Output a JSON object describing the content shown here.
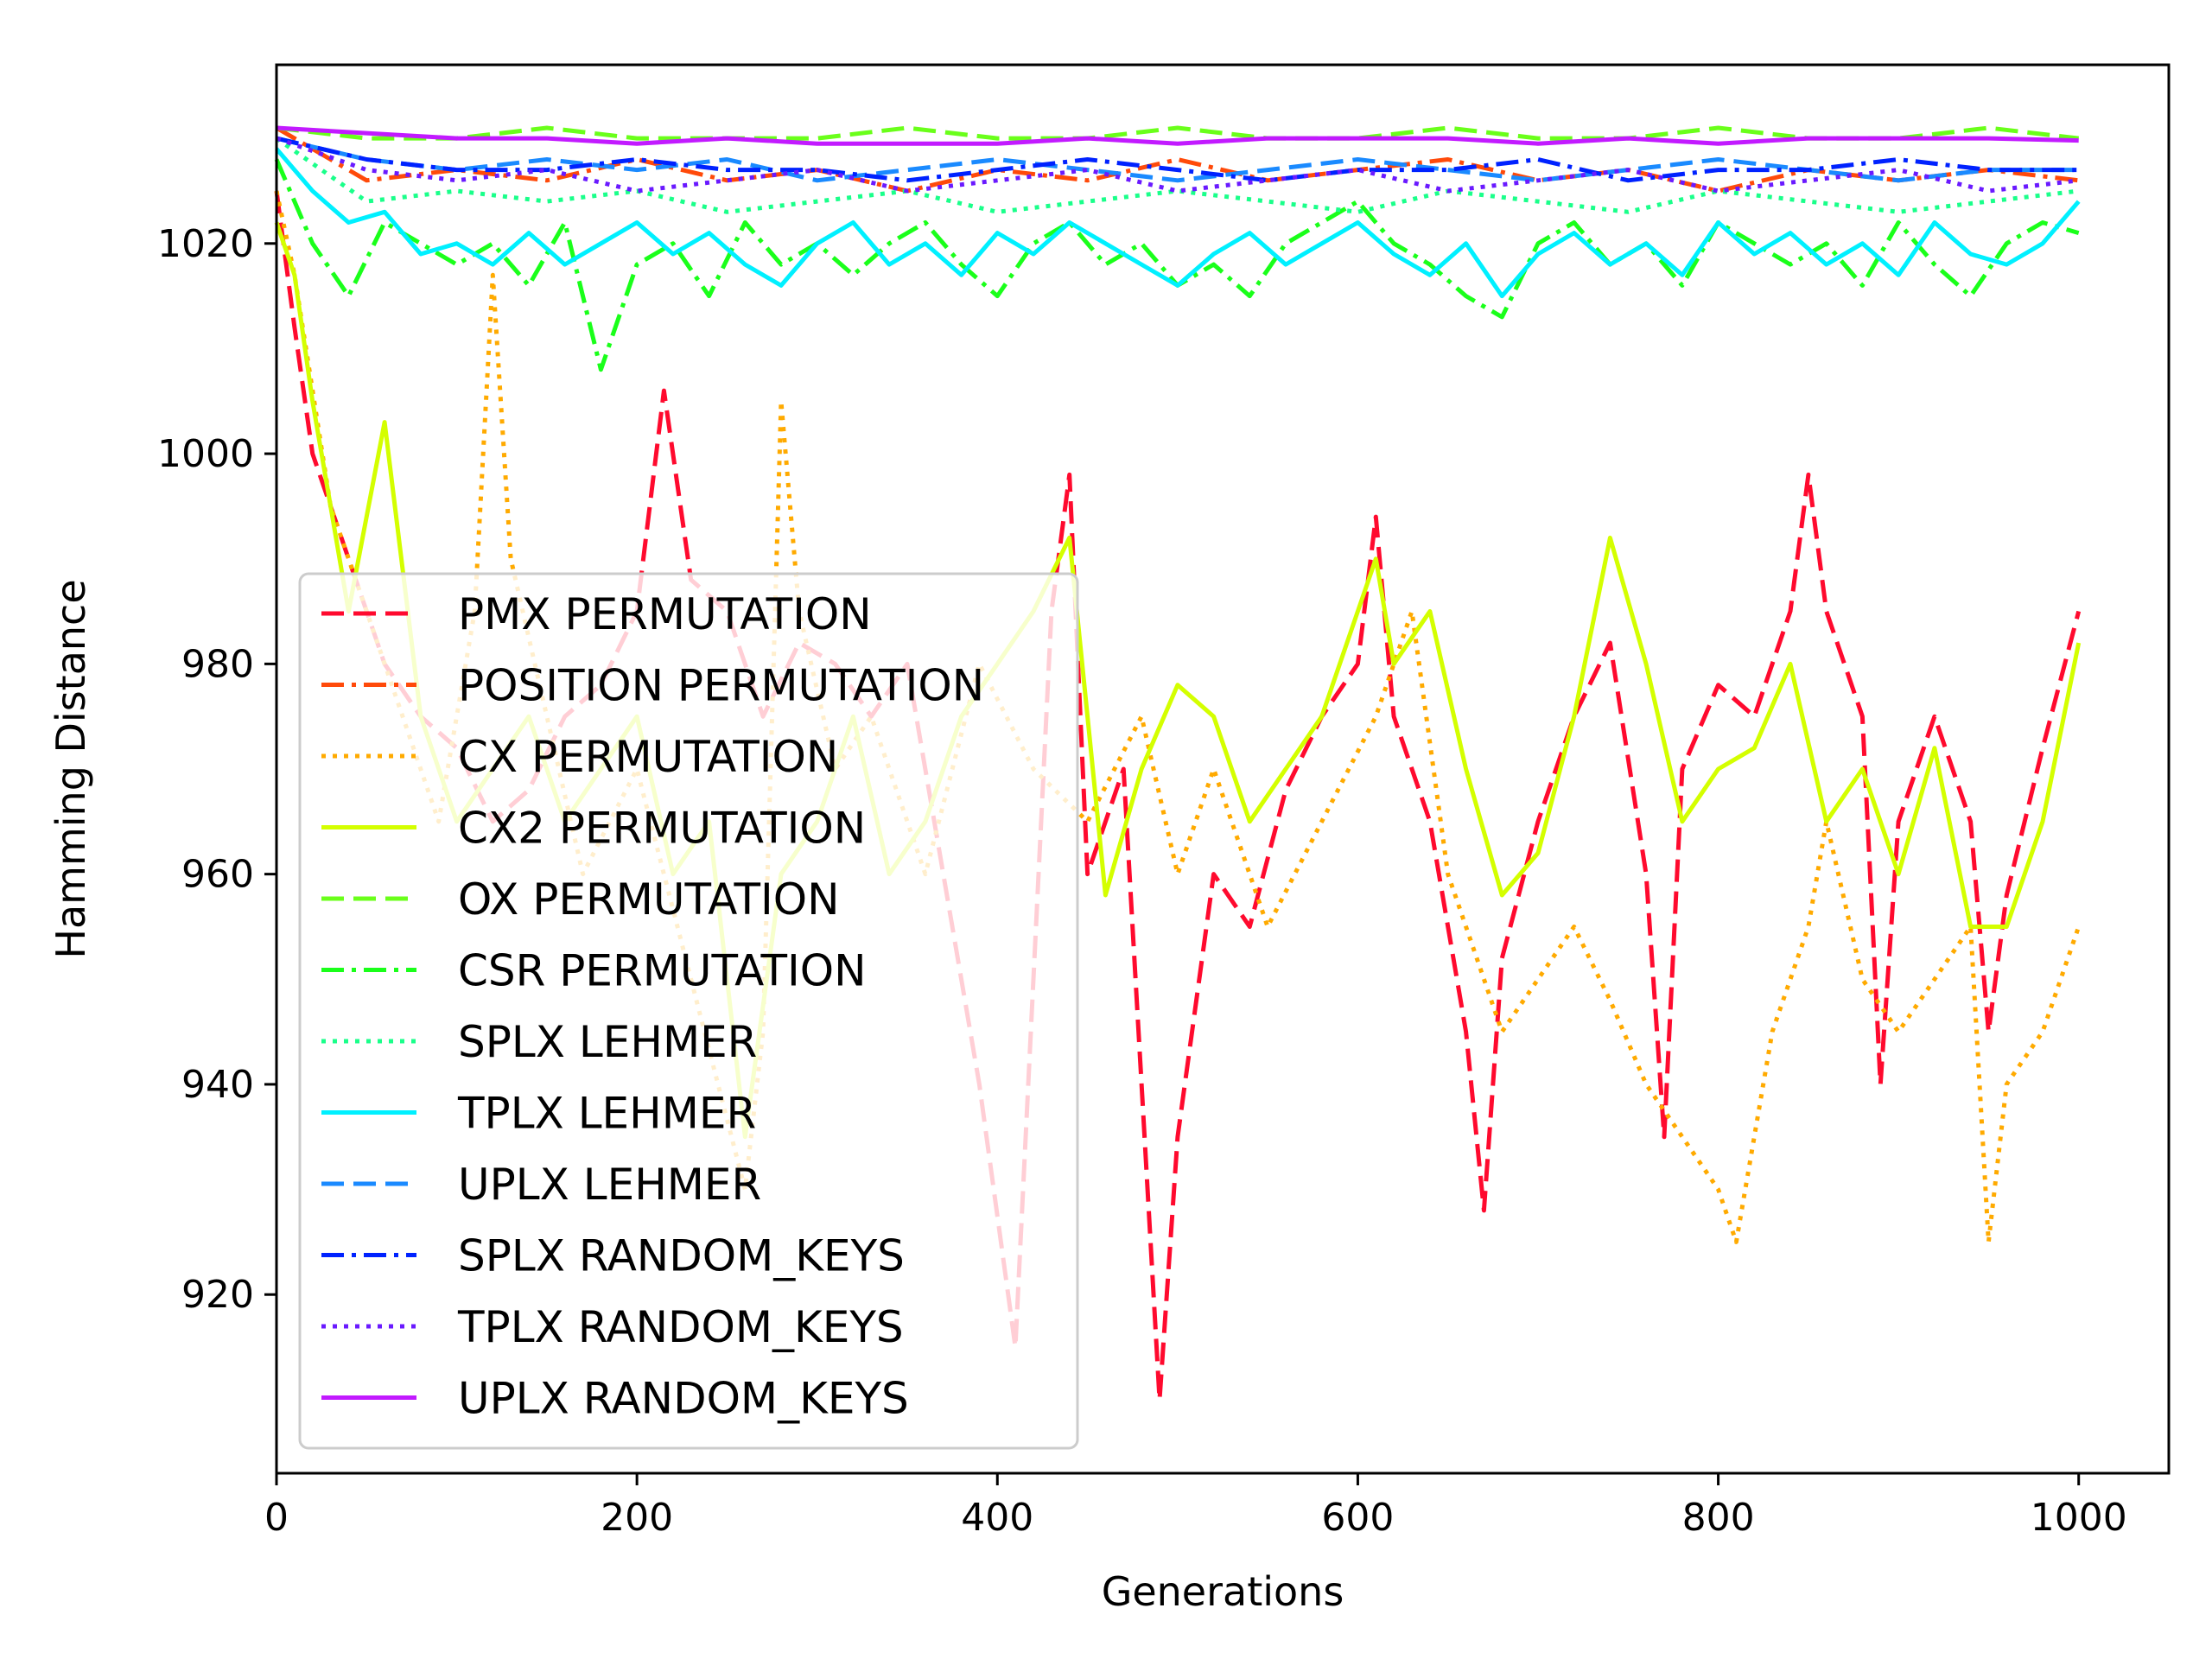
{
  "chart_data": {
    "type": "line",
    "title": "",
    "xlabel": "Generations",
    "ylabel": "Hamming Distance",
    "xlim": [
      0,
      1050
    ],
    "ylim": [
      903,
      1037
    ],
    "xticks": [
      0,
      200,
      400,
      600,
      800,
      1000
    ],
    "yticks": [
      920,
      940,
      960,
      980,
      1000,
      1020
    ],
    "grid": false,
    "legend_position": "lower-left",
    "series": [
      {
        "name": "PMX PERMUTATION",
        "color": "#ff0a2e",
        "dash": "dashed",
        "x": [
          0,
          10,
          20,
          30,
          40,
          50,
          60,
          80,
          100,
          120,
          140,
          160,
          180,
          200,
          215,
          230,
          250,
          270,
          290,
          310,
          330,
          350,
          370,
          390,
          410,
          430,
          440,
          450,
          470,
          490,
          500,
          520,
          540,
          560,
          580,
          600,
          610,
          620,
          640,
          660,
          670,
          680,
          700,
          720,
          740,
          760,
          770,
          780,
          800,
          820,
          840,
          850,
          860,
          880,
          890,
          900,
          920,
          940,
          950,
          960,
          980,
          1000
        ],
        "y": [
          1025,
          1012,
          1000,
          995,
          990,
          985,
          980,
          975,
          972,
          965,
          968,
          975,
          978,
          985,
          1006,
          988,
          985,
          975,
          982,
          980,
          975,
          980,
          960,
          940,
          915,
          985,
          998,
          960,
          970,
          910,
          935,
          960,
          955,
          968,
          975,
          980,
          994,
          975,
          965,
          945,
          928,
          952,
          965,
          975,
          982,
          960,
          935,
          970,
          978,
          975,
          985,
          998,
          985,
          975,
          940,
          965,
          975,
          965,
          945,
          958,
          972,
          985
        ]
      },
      {
        "name": "POSITION PERMUTATION",
        "color": "#ff4a0a",
        "dash": "dashdot",
        "x": [
          0,
          50,
          100,
          150,
          200,
          250,
          300,
          350,
          400,
          450,
          500,
          550,
          600,
          650,
          700,
          750,
          800,
          850,
          900,
          950,
          1000
        ],
        "y": [
          1031,
          1026,
          1027,
          1026,
          1028,
          1026,
          1027,
          1025,
          1027,
          1026,
          1028,
          1026,
          1027,
          1028,
          1026,
          1027,
          1025,
          1027,
          1026,
          1027,
          1026
        ]
      },
      {
        "name": "CX PERMUTATION",
        "color": "#ffaa00",
        "dash": "dotted",
        "x": [
          0,
          10,
          30,
          50,
          70,
          90,
          110,
          120,
          130,
          150,
          170,
          200,
          230,
          260,
          270,
          280,
          290,
          310,
          330,
          360,
          390,
          420,
          450,
          480,
          500,
          520,
          550,
          580,
          610,
          630,
          650,
          680,
          700,
          720,
          740,
          760,
          780,
          800,
          810,
          830,
          850,
          860,
          880,
          900,
          920,
          940,
          950,
          960,
          980,
          1000
        ],
        "y": [
          1025,
          1017,
          995,
          985,
          975,
          965,
          985,
          1017,
          990,
          975,
          960,
          970,
          950,
          930,
          945,
          1005,
          985,
          970,
          975,
          960,
          980,
          970,
          965,
          975,
          960,
          970,
          955,
          965,
          975,
          985,
          960,
          945,
          950,
          955,
          948,
          940,
          935,
          930,
          925,
          945,
          955,
          965,
          950,
          945,
          950,
          955,
          925,
          940,
          945,
          955
        ]
      },
      {
        "name": "CX2 PERMUTATION",
        "color": "#d4ff00",
        "dash": "solid",
        "x": [
          0,
          10,
          20,
          30,
          40,
          60,
          80,
          100,
          120,
          140,
          160,
          180,
          200,
          220,
          240,
          260,
          280,
          300,
          320,
          340,
          360,
          380,
          400,
          420,
          440,
          450,
          460,
          480,
          500,
          520,
          540,
          560,
          580,
          600,
          610,
          620,
          640,
          660,
          680,
          700,
          720,
          740,
          760,
          780,
          800,
          820,
          840,
          860,
          880,
          900,
          920,
          940,
          960,
          980,
          1000
        ],
        "y": [
          1022,
          1017,
          1005,
          995,
          985,
          1003,
          975,
          965,
          970,
          975,
          965,
          970,
          975,
          960,
          965,
          935,
          960,
          965,
          975,
          960,
          965,
          975,
          980,
          985,
          992,
          975,
          958,
          970,
          978,
          975,
          965,
          970,
          975,
          985,
          990,
          980,
          985,
          970,
          958,
          962,
          975,
          992,
          980,
          965,
          970,
          972,
          980,
          965,
          970,
          960,
          972,
          955,
          955,
          965,
          982
        ]
      },
      {
        "name": "OX PERMUTATION",
        "color": "#6aff1a",
        "dash": "dashed",
        "x": [
          0,
          50,
          100,
          150,
          200,
          250,
          300,
          350,
          400,
          450,
          500,
          550,
          600,
          650,
          700,
          750,
          800,
          850,
          900,
          950,
          1000
        ],
        "y": [
          1031,
          1030,
          1030,
          1031,
          1030,
          1030,
          1030,
          1031,
          1030,
          1030,
          1031,
          1030,
          1030,
          1031,
          1030,
          1030,
          1031,
          1030,
          1030,
          1031,
          1030
        ]
      },
      {
        "name": "CSR PERMUTATION",
        "color": "#1aff1a",
        "dash": "dashdot",
        "x": [
          0,
          20,
          40,
          60,
          80,
          100,
          120,
          140,
          160,
          180,
          200,
          220,
          240,
          260,
          280,
          300,
          320,
          340,
          360,
          380,
          400,
          420,
          440,
          460,
          480,
          500,
          520,
          540,
          560,
          580,
          600,
          620,
          640,
          660,
          680,
          700,
          720,
          740,
          760,
          780,
          800,
          820,
          840,
          860,
          880,
          900,
          920,
          940,
          960,
          980,
          1000
        ],
        "y": [
          1028,
          1020,
          1015,
          1022,
          1020,
          1018,
          1020,
          1016,
          1022,
          1008,
          1018,
          1020,
          1015,
          1022,
          1018,
          1020,
          1017,
          1020,
          1022,
          1018,
          1015,
          1020,
          1022,
          1018,
          1020,
          1016,
          1018,
          1015,
          1020,
          1022,
          1024,
          1020,
          1018,
          1015,
          1013,
          1020,
          1022,
          1018,
          1020,
          1016,
          1022,
          1020,
          1018,
          1020,
          1016,
          1022,
          1018,
          1015,
          1020,
          1022,
          1021
        ]
      },
      {
        "name": "SPLX LEHMER",
        "color": "#1aff8a",
        "dash": "dotted",
        "x": [
          0,
          50,
          100,
          150,
          200,
          250,
          300,
          350,
          400,
          450,
          500,
          550,
          600,
          650,
          700,
          750,
          800,
          850,
          900,
          950,
          1000
        ],
        "y": [
          1030,
          1024,
          1025,
          1024,
          1025,
          1023,
          1024,
          1025,
          1023,
          1024,
          1025,
          1024,
          1023,
          1025,
          1024,
          1023,
          1025,
          1024,
          1023,
          1024,
          1025
        ]
      },
      {
        "name": "TPLX LEHMER",
        "color": "#00f0ff",
        "dash": "solid",
        "x": [
          0,
          20,
          40,
          60,
          80,
          100,
          120,
          140,
          160,
          180,
          200,
          220,
          240,
          260,
          280,
          300,
          320,
          340,
          360,
          380,
          400,
          420,
          440,
          460,
          480,
          500,
          520,
          540,
          560,
          580,
          600,
          620,
          640,
          660,
          680,
          700,
          720,
          740,
          760,
          780,
          800,
          820,
          840,
          860,
          880,
          900,
          920,
          940,
          960,
          980,
          1000
        ],
        "y": [
          1029,
          1025,
          1022,
          1023,
          1019,
          1020,
          1018,
          1021,
          1018,
          1020,
          1022,
          1019,
          1021,
          1018,
          1016,
          1020,
          1022,
          1018,
          1020,
          1017,
          1021,
          1019,
          1022,
          1020,
          1018,
          1016,
          1019,
          1021,
          1018,
          1020,
          1022,
          1019,
          1017,
          1020,
          1015,
          1019,
          1021,
          1018,
          1020,
          1017,
          1022,
          1019,
          1021,
          1018,
          1020,
          1017,
          1022,
          1019,
          1018,
          1020,
          1024
        ]
      },
      {
        "name": "UPLX LEHMER",
        "color": "#1a8aff",
        "dash": "dashed",
        "x": [
          0,
          50,
          100,
          150,
          200,
          250,
          300,
          350,
          400,
          450,
          500,
          550,
          600,
          650,
          700,
          750,
          800,
          850,
          900,
          950,
          1000
        ],
        "y": [
          1030,
          1028,
          1027,
          1028,
          1027,
          1028,
          1026,
          1027,
          1028,
          1027,
          1026,
          1027,
          1028,
          1027,
          1026,
          1027,
          1028,
          1027,
          1026,
          1027,
          1027
        ]
      },
      {
        "name": "SPLX RANDOM_KEYS",
        "color": "#0022ff",
        "dash": "dashdot",
        "x": [
          0,
          50,
          100,
          150,
          200,
          250,
          300,
          350,
          400,
          450,
          500,
          550,
          600,
          650,
          700,
          750,
          800,
          850,
          900,
          950,
          1000
        ],
        "y": [
          1030,
          1028,
          1027,
          1027,
          1028,
          1027,
          1027,
          1026,
          1027,
          1028,
          1027,
          1026,
          1027,
          1027,
          1028,
          1026,
          1027,
          1027,
          1028,
          1027,
          1027
        ]
      },
      {
        "name": "TPLX RANDOM_KEYS",
        "color": "#6a1aff",
        "dash": "dotted",
        "x": [
          0,
          50,
          100,
          150,
          200,
          250,
          300,
          350,
          400,
          450,
          500,
          550,
          600,
          650,
          700,
          750,
          800,
          850,
          900,
          950,
          1000
        ],
        "y": [
          1030,
          1027,
          1026,
          1027,
          1025,
          1026,
          1027,
          1025,
          1026,
          1027,
          1025,
          1026,
          1027,
          1025,
          1026,
          1027,
          1025,
          1026,
          1027,
          1025,
          1026
        ]
      },
      {
        "name": "UPLX RANDOM_KEYS",
        "color": "#c21aff",
        "dash": "solid",
        "x": [
          0,
          50,
          100,
          150,
          200,
          250,
          300,
          350,
          400,
          450,
          500,
          550,
          600,
          650,
          700,
          750,
          800,
          850,
          900,
          950,
          1000
        ],
        "y": [
          1031,
          1030.5,
          1030,
          1030,
          1029.5,
          1030,
          1029.5,
          1029.5,
          1029.5,
          1030,
          1029.5,
          1030,
          1030,
          1030,
          1029.5,
          1030,
          1029.5,
          1030,
          1030,
          1030,
          1029.8
        ]
      }
    ]
  }
}
